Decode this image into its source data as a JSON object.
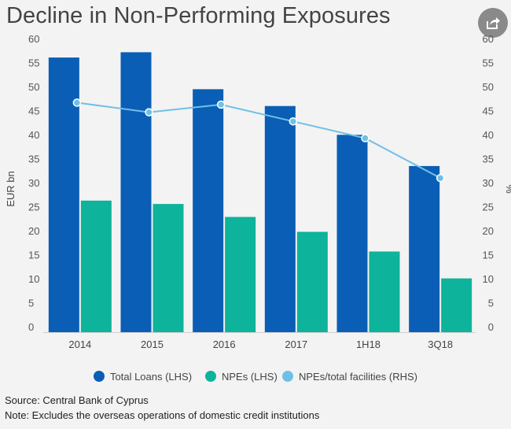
{
  "title": "Decline in Non-Performing Exposures",
  "share": {
    "icon": "share-icon"
  },
  "chart_data": {
    "type": "bar+line",
    "categories": [
      "2014",
      "2015",
      "2016",
      "2017",
      "1H18",
      "3Q18"
    ],
    "series": [
      {
        "name": "Total Loans (LHS)",
        "type": "bar",
        "axis": "left",
        "color": "#0b5eb5",
        "values": [
          57.2,
          58.3,
          50.6,
          47.1,
          41.1,
          34.6
        ]
      },
      {
        "name": "NPEs (LHS)",
        "type": "bar",
        "axis": "left",
        "color": "#0db39a",
        "values": [
          27.4,
          26.7,
          24.0,
          20.9,
          16.8,
          11.2
        ]
      },
      {
        "name": "NPEs/total facilities (RHS)",
        "type": "line",
        "axis": "right",
        "color": "#6fc0e6",
        "values": [
          47.8,
          45.8,
          47.4,
          43.9,
          40.4,
          32.1
        ]
      }
    ],
    "ylabel": "EUR bn",
    "y2label": "%",
    "ylim": [
      0,
      60
    ],
    "y2lim": [
      0,
      60
    ],
    "yticks": [
      0,
      5,
      10,
      15,
      20,
      25,
      30,
      35,
      40,
      45,
      50,
      55,
      60
    ],
    "y2ticks": [
      0,
      5,
      10,
      15,
      20,
      25,
      30,
      35,
      40,
      45,
      50,
      55,
      60
    ],
    "grid": false,
    "legend_position": "bottom"
  },
  "footer": {
    "source": "Source: Central Bank of Cyprus",
    "note": "Note: Excludes the overseas operations of domestic credit institutions"
  }
}
